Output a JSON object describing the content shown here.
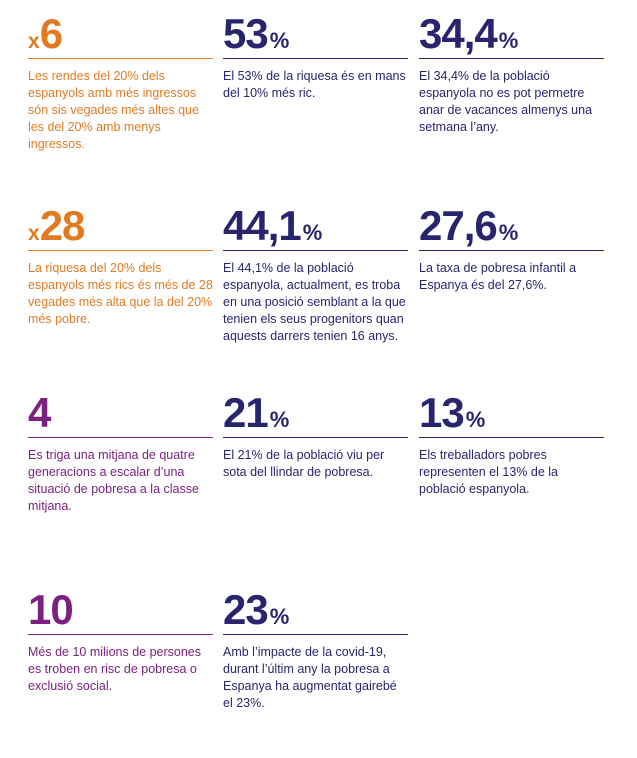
{
  "stats": [
    {
      "prefix": "x",
      "value": "6",
      "suffix": "",
      "text": "Les rendes del 20% dels espanyols amb més ingressos són sis vegades més altes que les del 20% amb menys ingressos.",
      "color": "#e07b22"
    },
    {
      "prefix": "",
      "value": "53",
      "suffix": "%",
      "text": "El 53% de la riquesa és en mans del 10% més ric.",
      "color": "#27256e"
    },
    {
      "prefix": "",
      "value": "34,4",
      "suffix": "%",
      "text": "El 34,4% de la població espanyola no es pot permetre anar de vacances almenys una setmana l’any.",
      "color": "#27256e"
    },
    {
      "prefix": "x",
      "value": "28",
      "suffix": "",
      "text": "La riquesa del 20% dels espanyols més rics és més de 28 vegades més alta que la del 20% més pobre.",
      "color": "#e07b22"
    },
    {
      "prefix": "",
      "value": "44,1",
      "suffix": "%",
      "text": "El 44,1% de la població espanyola, actualment, es troba en una posició semblant a la que tenien els seus progenitors quan aquests darrers tenien 16 anys.",
      "color": "#27256e"
    },
    {
      "prefix": "",
      "value": "27,6",
      "suffix": "%",
      "text": "La taxa de pobresa infantil a Espanya és del 27,6%.",
      "color": "#27256e"
    },
    {
      "prefix": "",
      "value": "4",
      "suffix": "",
      "text": "Es triga una mitjana de quatre generacions a escalar d’una situació de pobresa a la classe mitjana.",
      "color": "#7b2180"
    },
    {
      "prefix": "",
      "value": "21",
      "suffix": "%",
      "text": "El 21% de la població viu per sota del llindar de pobresa.",
      "color": "#27256e"
    },
    {
      "prefix": "",
      "value": "13",
      "suffix": "%",
      "text": "Els treballadors pobres representen el 13% de la població espanyola.",
      "color": "#27256e"
    },
    {
      "prefix": "",
      "value": "10",
      "suffix": "",
      "text": "Més de 10 milions de persones es troben en risc de pobresa o exclusió social.",
      "color": "#7b2180"
    },
    {
      "prefix": "",
      "value": "23",
      "suffix": "%",
      "text": "Amb l’impacte de la covid-19, durant l’últim any la pobresa a Espanya ha augmentat gairebé el 23%.",
      "color": "#27256e"
    }
  ]
}
